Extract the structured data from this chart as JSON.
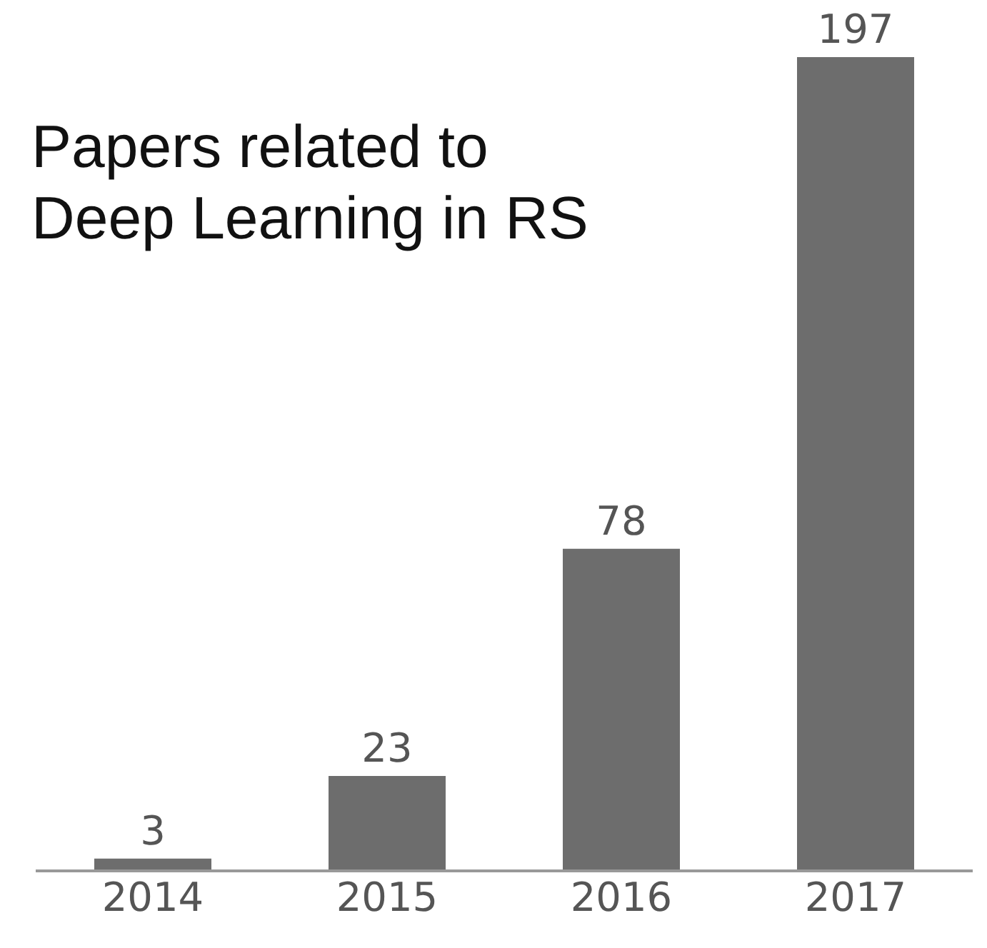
{
  "chart_data": {
    "type": "bar",
    "title": "Papers related to Deep Learning in RS",
    "categories": [
      "2014",
      "2015",
      "2016",
      "2017"
    ],
    "values": [
      3,
      23,
      78,
      197
    ],
    "color": "#6d6d6d",
    "data_labels": true,
    "grid": false,
    "legend": false
  }
}
